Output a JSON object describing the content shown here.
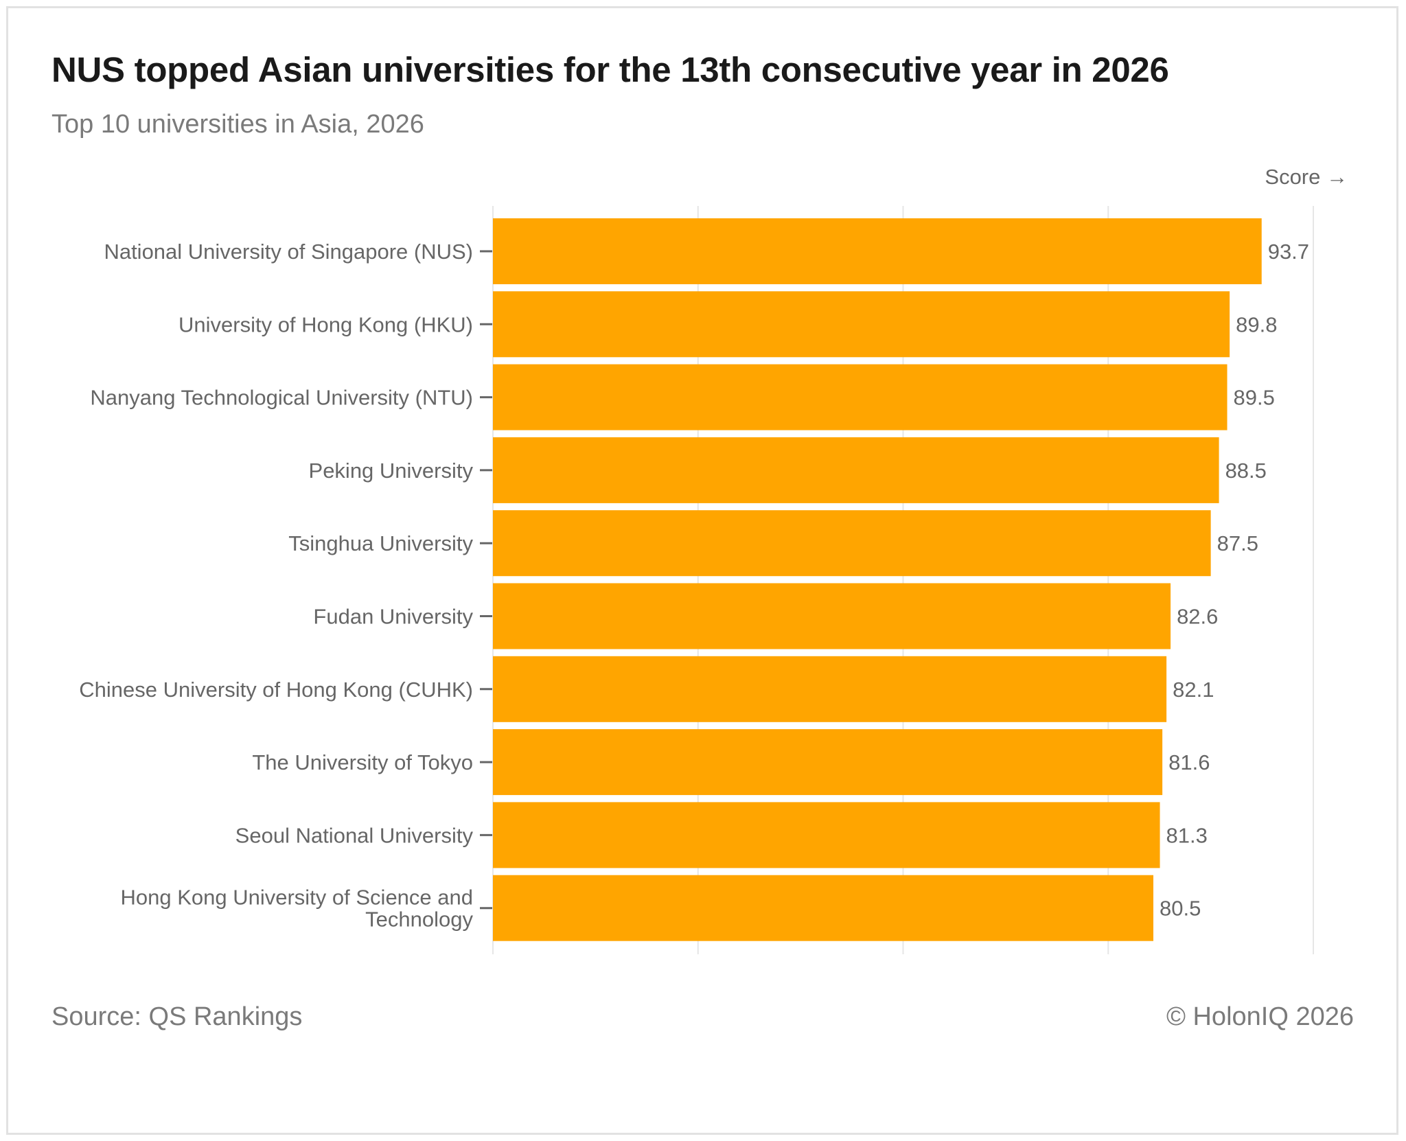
{
  "chart_data": {
    "type": "bar",
    "orientation": "horizontal",
    "title": "NUS topped Asian universities for the 13th consecutive year in 2026",
    "subtitle": "Top 10 universities in Asia, 2026",
    "xlabel": "Score →",
    "ylabel": "",
    "xlim": [
      0,
      100
    ],
    "grid": true,
    "categories": [
      "National University of Singapore (NUS)",
      "University of Hong Kong (HKU)",
      "Nanyang Technological University (NTU)",
      "Peking University",
      "Tsinghua University",
      "Fudan University",
      "Chinese University of Hong Kong (CUHK)",
      "The University of Tokyo",
      "Seoul National University",
      "Hong Kong University of Science and Technology"
    ],
    "values": [
      93.7,
      89.8,
      89.5,
      88.5,
      87.5,
      82.6,
      82.1,
      81.6,
      81.3,
      80.5
    ],
    "data_labels": [
      "93.7",
      "89.8",
      "89.5",
      "88.5",
      "87.5",
      "82.6",
      "82.1",
      "81.6",
      "81.3",
      "80.5"
    ],
    "bar_color": "#FFA500",
    "gridline_color": "#e6e6e6",
    "axis_color": "#666666"
  },
  "footer": {
    "source": "Source: QS Rankings",
    "copyright": "© HolonIQ 2026"
  }
}
